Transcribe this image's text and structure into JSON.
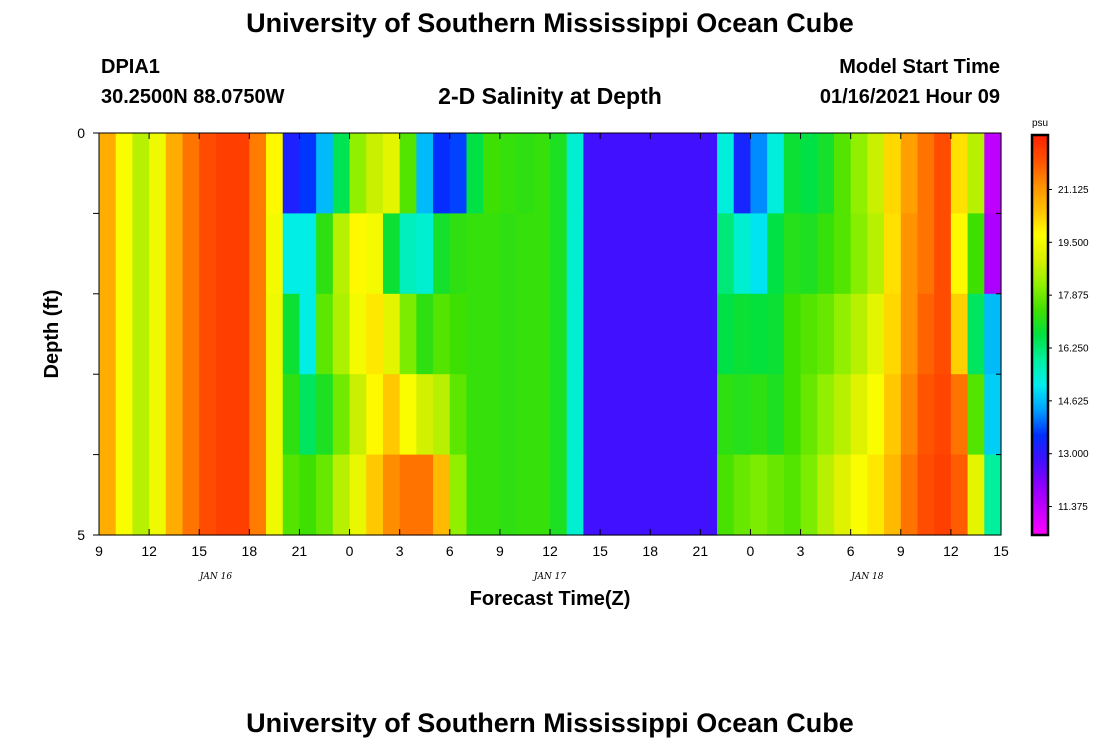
{
  "header": {
    "title": "University of Southern Mississippi Ocean Cube",
    "station_id": "DPIA1",
    "station_coords": "30.2500N 88.0750W",
    "chart_title": "2-D Salinity at Depth",
    "model_label": "Model Start Time",
    "model_time": "01/16/2021 Hour 09"
  },
  "footer": {
    "title": "University of Southern Mississippi Ocean Cube"
  },
  "chart_data": {
    "type": "heatmap",
    "title": "2-D Salinity at Depth",
    "xlabel": "Forecast Time(Z)",
    "ylabel": "Depth (ft)",
    "x_tick_labels": [
      "9",
      "12",
      "15",
      "18",
      "21",
      "0",
      "3",
      "6",
      "9",
      "12",
      "15",
      "18",
      "21",
      "0",
      "3",
      "6",
      "9",
      "12",
      "15"
    ],
    "x_date_labels": [
      {
        "text": "JAN 16",
        "hours_from_start": 7
      },
      {
        "text": "JAN 17",
        "hours_from_start": 27
      },
      {
        "text": "JAN 18",
        "hours_from_start": 46
      }
    ],
    "y_tick_labels": [
      "0",
      "5"
    ],
    "ylim": [
      0,
      5
    ],
    "xlim_hours_from_start": [
      0,
      54
    ],
    "time_step_hours": 1,
    "depth_levels": [
      "0-1",
      "1-2",
      "2-3",
      "3-4",
      "4-5"
    ],
    "colorbar": {
      "unit": "psu",
      "tick_labels": [
        "21.125",
        "19.500",
        "17.875",
        "16.250",
        "14.625",
        "13.000",
        "11.375"
      ],
      "range": [
        10.5,
        22.8
      ],
      "colors": [
        "#ff00ff",
        "#c800ff",
        "#8c00ff",
        "#4010ff",
        "#0030ff",
        "#00a0ff",
        "#00eeee",
        "#00f0a0",
        "#00e040",
        "#40e000",
        "#90f000",
        "#d8f000",
        "#ffff00",
        "#ffc000",
        "#ff9000",
        "#ff5000",
        "#ff2000"
      ]
    },
    "values": [
      [
        20.8,
        19.6,
        18.6,
        19.4,
        20.8,
        21.6,
        22.1,
        22.3,
        22.3,
        21.5,
        19.8,
        13.2,
        13.6,
        14.6,
        16.5,
        18.2,
        18.8,
        19.2,
        17.6,
        14.6,
        13.5,
        13.7,
        16.6,
        17.4,
        17.3,
        17.2,
        17.3,
        17.0,
        15.4,
        12.8,
        12.8,
        12.8,
        12.8,
        12.8,
        12.8,
        12.8,
        12.8,
        15.3,
        13.3,
        14.2,
        15.3,
        16.8,
        16.6,
        16.9,
        17.6,
        18.2,
        18.8,
        20.2,
        21.0,
        21.6,
        22.1,
        20.1,
        18.6,
        11.4
      ],
      [
        20.8,
        19.6,
        18.6,
        19.4,
        20.8,
        21.6,
        22.1,
        22.3,
        22.3,
        21.5,
        19.5,
        15.2,
        15.2,
        17.2,
        18.6,
        19.8,
        19.5,
        16.8,
        15.6,
        15.4,
        16.9,
        17.2,
        17.3,
        17.3,
        17.2,
        17.3,
        17.3,
        17.0,
        15.4,
        12.8,
        12.8,
        12.8,
        12.8,
        12.8,
        12.8,
        12.8,
        12.8,
        16.2,
        15.4,
        15.0,
        16.6,
        17.1,
        17.0,
        17.3,
        17.6,
        18.1,
        18.6,
        20.1,
        21.2,
        21.6,
        22.1,
        19.8,
        17.4,
        11.6
      ],
      [
        20.8,
        19.6,
        18.6,
        19.4,
        20.8,
        21.6,
        22.1,
        22.3,
        22.3,
        21.5,
        19.4,
        16.8,
        15.2,
        17.7,
        18.5,
        19.5,
        20.0,
        19.2,
        18.0,
        17.2,
        17.6,
        17.4,
        17.3,
        17.3,
        17.2,
        17.3,
        17.3,
        17.0,
        15.4,
        12.8,
        12.8,
        12.8,
        12.8,
        12.8,
        12.8,
        12.8,
        12.8,
        16.6,
        16.8,
        16.7,
        16.8,
        17.4,
        17.6,
        17.8,
        18.2,
        18.6,
        19.2,
        20.2,
        21.2,
        21.8,
        22.1,
        20.3,
        16.4,
        14.6
      ],
      [
        20.8,
        19.6,
        18.6,
        19.4,
        20.8,
        21.6,
        22.1,
        22.3,
        22.3,
        21.5,
        19.4,
        17.2,
        16.4,
        17.0,
        17.9,
        18.8,
        19.8,
        20.4,
        19.6,
        18.9,
        18.6,
        17.7,
        17.3,
        17.3,
        17.2,
        17.3,
        17.3,
        17.0,
        15.4,
        12.8,
        12.8,
        12.8,
        12.8,
        12.8,
        12.8,
        12.8,
        12.8,
        17.2,
        17.1,
        17.2,
        17.0,
        17.4,
        17.8,
        18.2,
        18.6,
        19.1,
        19.6,
        20.4,
        21.4,
        22.0,
        22.2,
        21.6,
        17.6,
        14.8
      ],
      [
        20.8,
        19.6,
        18.6,
        19.4,
        20.8,
        21.6,
        22.1,
        22.3,
        22.3,
        21.5,
        19.4,
        17.6,
        17.4,
        17.8,
        18.6,
        19.3,
        20.4,
        21.3,
        21.6,
        21.6,
        20.6,
        18.2,
        17.3,
        17.3,
        17.2,
        17.3,
        17.3,
        17.0,
        15.4,
        12.8,
        12.8,
        12.8,
        12.8,
        12.8,
        12.8,
        12.8,
        12.8,
        17.5,
        17.8,
        18.0,
        17.8,
        17.6,
        18.0,
        18.6,
        19.1,
        19.6,
        20.0,
        20.6,
        21.6,
        22.1,
        22.3,
        21.9,
        19.2,
        15.9
      ]
    ]
  }
}
